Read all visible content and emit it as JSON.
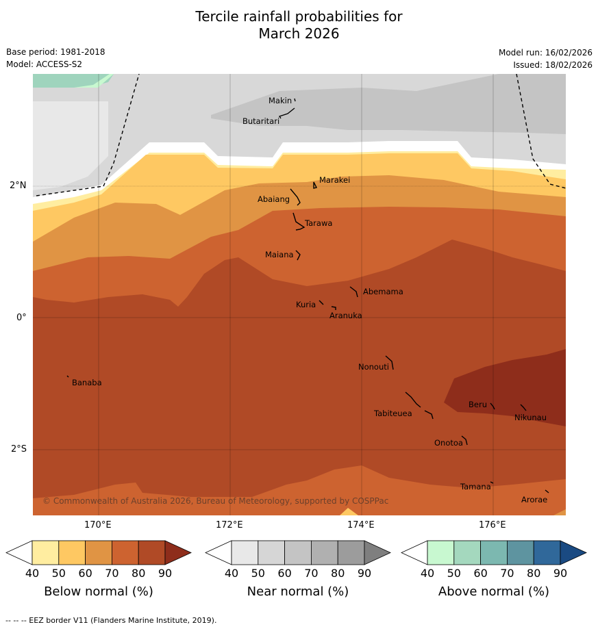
{
  "title_line1": "Tercile rainfall probabilities for",
  "title_line2": "March 2026",
  "meta": {
    "base_period": "Base period: 1981-2018",
    "model": "Model: ACCESS-S2",
    "model_run": "Model run: 16/02/2026",
    "issued": "Issued: 18/02/2026"
  },
  "axes": {
    "lat_labels": [
      "2°N",
      "0°",
      "2°S"
    ],
    "lon_labels": [
      "170°E",
      "172°E",
      "174°E",
      "176°E"
    ]
  },
  "islands": [
    "Makin",
    "Butaritari",
    "Marakei",
    "Abaiang",
    "Tarawa",
    "Maiana",
    "Abemama",
    "Kuria",
    "Aranuka",
    "Nonouti",
    "Banaba",
    "Beru",
    "Nikunau",
    "Tabiteuea",
    "Onotoa",
    "Tamana",
    "Arorae"
  ],
  "copyright": "© Commonwealth of Australia 2026, Bureau of Meteorology, supported by COSPPac",
  "colorbars": {
    "ticks": [
      "40",
      "50",
      "60",
      "70",
      "80",
      "90"
    ],
    "below": {
      "label": "Below normal (%)",
      "colors": [
        "#ffffff",
        "#ffeda0",
        "#fec862",
        "#e09444",
        "#cd6330",
        "#b04a26",
        "#8e2d1b"
      ]
    },
    "near": {
      "label": "Near normal (%)",
      "colors": [
        "#ffffff",
        "#e8e8e8",
        "#d6d6d6",
        "#c4c4c4",
        "#b0b0b0",
        "#9c9c9c",
        "#7f7f7f"
      ]
    },
    "above": {
      "label": "Above normal (%)",
      "colors": [
        "#ffffff",
        "#c8f8d0",
        "#a4d8be",
        "#7cb8b0",
        "#5e94a0",
        "#30689a",
        "#1a4a82"
      ]
    }
  },
  "footer": "--  --  -- EEZ border V11 (Flanders Marine Institute, 2019)."
}
